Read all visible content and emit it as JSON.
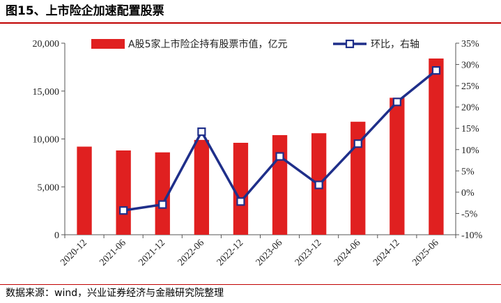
{
  "title": "图15、上市险企加速配置股票",
  "source": "数据来源：wind，兴业证券经济与金融研究院整理",
  "colors": {
    "bar": "#e02020",
    "line": "#1f2f8a",
    "marker_fill": "#ffffff",
    "title_rule": "#c00000"
  },
  "chart_data": {
    "type": "bar",
    "categories": [
      "2020-12",
      "2021-06",
      "2021-12",
      "2022-06",
      "2022-12",
      "2023-06",
      "2023-12",
      "2024-06",
      "2024-12",
      "2025-06"
    ],
    "series": [
      {
        "name": "A股5家上市险企持有股票市值，亿元",
        "type": "bar",
        "axis": "left",
        "values": [
          9200,
          8800,
          8600,
          9900,
          9600,
          10400,
          10600,
          11800,
          14300,
          18400
        ]
      },
      {
        "name": "环比，右轴",
        "type": "line",
        "axis": "right",
        "values": [
          null,
          -4.3,
          -2.9,
          14.2,
          -2.2,
          8.4,
          1.7,
          11.4,
          21.2,
          28.6
        ]
      }
    ],
    "y_left": {
      "lim": [
        0,
        20000
      ],
      "ticks": [
        0,
        5000,
        10000,
        15000,
        20000
      ],
      "tick_labels": [
        "0",
        "5,000",
        "10,000",
        "15,000",
        "20,000"
      ]
    },
    "y_right": {
      "lim": [
        -10,
        35
      ],
      "ticks": [
        -10,
        -5,
        0,
        5,
        10,
        15,
        20,
        25,
        30,
        35
      ],
      "tick_labels": [
        "-10%",
        "-5%",
        "0%",
        "5%",
        "10%",
        "15%",
        "20%",
        "25%",
        "30%",
        "35%"
      ]
    },
    "legend_position": "top",
    "grid": false
  }
}
